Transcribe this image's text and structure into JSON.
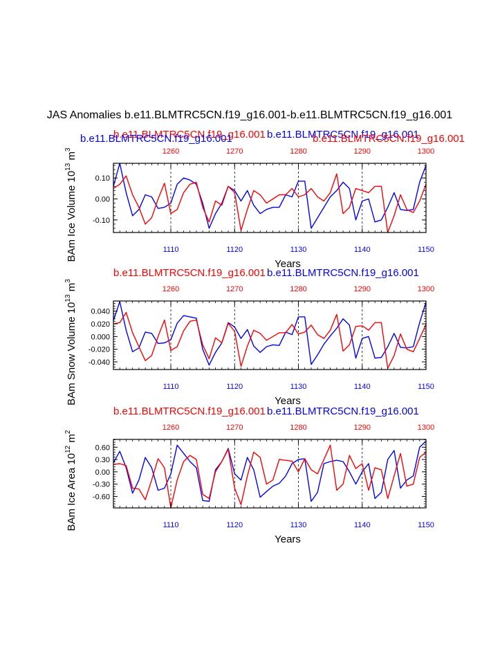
{
  "page": {
    "title": "JAS Anomalies b.e11.BLMTRC5CN.f19_g16.001-b.e11.BLMTRC5CN.f19_g16.001"
  },
  "colors": {
    "blue": "#0000ff",
    "red": "#ff0000",
    "axis": "#000000"
  },
  "chart_data": [
    {
      "type": "line",
      "ylabel": "BAm Ice Volume 10",
      "ylabel_exp": "13",
      "ylabel_unit": " m",
      "ylabel_unit_exp": "3",
      "xlabel": "Years",
      "top_labels": [
        {
          "text": "b.e11.BLMTRC5CN.f19_g16.001",
          "color": "red"
        },
        {
          "text": "b.e11.BLMTRC5CN.f19_g16.001",
          "color": "blue"
        },
        {
          "text": "b.e11.BLMTRC5CN.f19_g16.001",
          "color": "blue"
        },
        {
          "text": "b.e11.BLMTRC5CN.f19_g16.001",
          "color": "red"
        }
      ],
      "xlim": [
        1101,
        1150
      ],
      "ylim": [
        -0.16,
        0.17
      ],
      "yticks": [
        -0.1,
        0.0,
        0.1
      ],
      "ytick_labels": [
        "-0.10",
        "0.00",
        "0.10"
      ],
      "xticks": [
        1110,
        1120,
        1130,
        1140,
        1150
      ],
      "xtick_labels": [
        "1110",
        "1120",
        "1130",
        "1140",
        "1150"
      ],
      "top_ticks": [
        1110,
        1120,
        1130,
        1140,
        1150
      ],
      "top_tick_labels": [
        "1260",
        "1270",
        "1280",
        "1290",
        "1300"
      ],
      "x": [
        1101,
        1102,
        1103,
        1104,
        1105,
        1106,
        1107,
        1108,
        1109,
        1110,
        1111,
        1112,
        1113,
        1114,
        1115,
        1116,
        1117,
        1118,
        1119,
        1120,
        1121,
        1122,
        1123,
        1124,
        1125,
        1126,
        1127,
        1128,
        1129,
        1130,
        1131,
        1132,
        1133,
        1134,
        1135,
        1136,
        1137,
        1138,
        1139,
        1140,
        1141,
        1142,
        1143,
        1144,
        1145,
        1146,
        1147,
        1148,
        1149,
        1150
      ],
      "series": [
        {
          "name": "blue",
          "color": "blue",
          "values": [
            0.06,
            0.17,
            0.03,
            -0.08,
            -0.05,
            0.02,
            0.01,
            -0.045,
            -0.04,
            -0.02,
            0.07,
            0.1,
            0.09,
            0.07,
            -0.02,
            -0.14,
            -0.07,
            -0.02,
            0.06,
            0.04,
            -0.01,
            0.04,
            -0.03,
            -0.07,
            -0.05,
            -0.04,
            -0.04,
            0.02,
            0.01,
            0.085,
            0.085,
            -0.14,
            -0.09,
            -0.04,
            0.01,
            0.04,
            0.08,
            0.05,
            -0.1,
            -0.01,
            0.0,
            -0.11,
            -0.1,
            -0.04,
            0.03,
            -0.05,
            -0.055,
            -0.05,
            0.08,
            0.16
          ]
        },
        {
          "name": "red",
          "color": "red",
          "values": [
            0.05,
            0.07,
            0.11,
            0.02,
            -0.04,
            -0.12,
            -0.09,
            0.0,
            0.075,
            -0.07,
            -0.05,
            0.03,
            0.07,
            0.08,
            -0.04,
            -0.11,
            -0.01,
            -0.03,
            0.06,
            0.03,
            -0.15,
            -0.05,
            0.04,
            0.02,
            -0.02,
            0.0,
            0.02,
            0.02,
            0.05,
            0.01,
            0.02,
            0.05,
            0.01,
            -0.01,
            0.03,
            0.12,
            -0.07,
            -0.04,
            0.05,
            0.04,
            0.03,
            0.06,
            0.06,
            -0.16,
            -0.08,
            0.02,
            -0.05,
            -0.065,
            -0.01,
            0.07
          ]
        }
      ]
    },
    {
      "type": "line",
      "ylabel": "BAm Snow Volume 10",
      "ylabel_exp": "13",
      "ylabel_unit": " m",
      "ylabel_unit_exp": "3",
      "xlabel": "Years",
      "top_labels": [
        {
          "text": "b.e11.BLMTRC5CN.f19_g16.001",
          "color": "red"
        },
        {
          "text": "b.e11.BLMTRC5CN.f19_g16.001",
          "color": "blue"
        }
      ],
      "xlim": [
        1101,
        1150
      ],
      "ylim": [
        -0.052,
        0.056
      ],
      "yticks": [
        -0.04,
        -0.02,
        0.0,
        0.02,
        0.04
      ],
      "ytick_labels": [
        "-0.040",
        "-0.020",
        "0.000",
        "0.020",
        "0.040"
      ],
      "xticks": [
        1110,
        1120,
        1130,
        1140,
        1150
      ],
      "xtick_labels": [
        "1110",
        "1120",
        "1130",
        "1140",
        "1150"
      ],
      "top_ticks": [
        1110,
        1120,
        1130,
        1140,
        1150
      ],
      "top_tick_labels": [
        "1260",
        "1270",
        "1280",
        "1290",
        "1300"
      ],
      "x": [
        1101,
        1102,
        1103,
        1104,
        1105,
        1106,
        1107,
        1108,
        1109,
        1110,
        1111,
        1112,
        1113,
        1114,
        1115,
        1116,
        1117,
        1118,
        1119,
        1120,
        1121,
        1122,
        1123,
        1124,
        1125,
        1126,
        1127,
        1128,
        1129,
        1130,
        1131,
        1132,
        1133,
        1134,
        1135,
        1136,
        1137,
        1138,
        1139,
        1140,
        1141,
        1142,
        1143,
        1144,
        1145,
        1146,
        1147,
        1148,
        1149,
        1150
      ],
      "series": [
        {
          "name": "blue",
          "color": "blue",
          "values": [
            0.025,
            0.055,
            0.01,
            -0.024,
            -0.018,
            0.007,
            0.005,
            -0.011,
            -0.01,
            -0.005,
            0.021,
            0.033,
            0.031,
            0.029,
            -0.02,
            -0.045,
            -0.025,
            -0.01,
            0.022,
            0.015,
            -0.003,
            0.011,
            -0.015,
            -0.025,
            -0.016,
            -0.013,
            -0.014,
            0.007,
            0.003,
            0.031,
            0.031,
            -0.044,
            -0.029,
            -0.012,
            0.001,
            0.013,
            0.028,
            0.018,
            -0.034,
            -0.003,
            0.0,
            -0.034,
            -0.033,
            -0.016,
            0.005,
            -0.017,
            -0.018,
            -0.016,
            0.022,
            0.054
          ]
        },
        {
          "name": "red",
          "color": "red",
          "values": [
            0.02,
            0.022,
            0.038,
            0.006,
            -0.016,
            -0.038,
            -0.03,
            0.0,
            0.026,
            -0.022,
            -0.016,
            0.009,
            0.024,
            0.026,
            -0.013,
            -0.035,
            -0.002,
            -0.01,
            0.021,
            0.008,
            -0.047,
            -0.015,
            0.01,
            0.005,
            -0.006,
            0.0,
            0.006,
            0.006,
            0.019,
            0.004,
            0.007,
            0.018,
            0.003,
            -0.003,
            0.01,
            0.035,
            -0.023,
            -0.013,
            0.016,
            0.017,
            0.01,
            0.022,
            0.022,
            -0.05,
            -0.03,
            0.004,
            -0.02,
            -0.024,
            -0.003,
            0.019
          ]
        }
      ]
    },
    {
      "type": "line",
      "ylabel": "BAm Ice Area 10",
      "ylabel_exp": "12",
      "ylabel_unit": " m",
      "ylabel_unit_exp": "2",
      "xlabel": "Years",
      "top_labels": [
        {
          "text": "b.e11.BLMTRC5CN.f19_g16.001",
          "color": "red"
        },
        {
          "text": "b.e11.BLMTRC5CN.f19_g16.001",
          "color": "blue"
        }
      ],
      "xlim": [
        1101,
        1150
      ],
      "ylim": [
        -0.88,
        0.79
      ],
      "yticks": [
        -0.6,
        -0.3,
        0.0,
        0.3,
        0.6
      ],
      "ytick_labels": [
        "-0.60",
        "-0.30",
        "0.00",
        "0.30",
        "0.60"
      ],
      "xticks": [
        1110,
        1120,
        1130,
        1140,
        1150
      ],
      "xtick_labels": [
        "1110",
        "1120",
        "1130",
        "1140",
        "1150"
      ],
      "top_ticks": [
        1110,
        1120,
        1130,
        1140,
        1150
      ],
      "top_tick_labels": [
        "1260",
        "1270",
        "1280",
        "1290",
        "1300"
      ],
      "x": [
        1101,
        1102,
        1103,
        1104,
        1105,
        1106,
        1107,
        1108,
        1109,
        1110,
        1111,
        1112,
        1113,
        1114,
        1115,
        1116,
        1117,
        1118,
        1119,
        1120,
        1121,
        1122,
        1123,
        1124,
        1125,
        1126,
        1127,
        1128,
        1129,
        1130,
        1131,
        1132,
        1133,
        1134,
        1135,
        1136,
        1137,
        1138,
        1139,
        1140,
        1141,
        1142,
        1143,
        1144,
        1145,
        1146,
        1147,
        1148,
        1149,
        1150
      ],
      "series": [
        {
          "name": "blue",
          "color": "blue",
          "values": [
            0.22,
            0.5,
            0.1,
            -0.52,
            -0.2,
            0.35,
            0.1,
            -0.45,
            -0.4,
            -0.05,
            0.65,
            0.45,
            0.25,
            0.1,
            -0.7,
            -0.72,
            0.05,
            0.25,
            0.57,
            -0.05,
            -0.2,
            0.35,
            0.05,
            -0.62,
            -0.48,
            -0.35,
            -0.28,
            -0.1,
            0.2,
            0.3,
            0.32,
            -0.72,
            -0.5,
            0.2,
            0.25,
            0.28,
            0.25,
            0.0,
            -0.3,
            0.0,
            0.2,
            -0.65,
            -0.5,
            0.3,
            0.52,
            -0.4,
            -0.2,
            -0.1,
            0.6,
            0.75
          ]
        },
        {
          "name": "red",
          "color": "red",
          "values": [
            0.18,
            0.2,
            0.15,
            -0.4,
            -0.42,
            -0.68,
            -0.2,
            0.32,
            0.1,
            -0.88,
            -0.2,
            0.25,
            0.4,
            0.3,
            -0.55,
            -0.65,
            0.0,
            0.25,
            0.55,
            -0.4,
            -0.8,
            -0.1,
            0.48,
            0.35,
            -0.3,
            -0.2,
            0.3,
            0.28,
            0.26,
            0.0,
            0.32,
            0.05,
            -0.05,
            0.3,
            0.65,
            -0.45,
            -0.3,
            0.4,
            0.08,
            0.2,
            -0.45,
            0.1,
            0.05,
            -0.65,
            -0.1,
            0.45,
            -0.35,
            -0.3,
            0.35,
            0.48
          ]
        }
      ]
    }
  ]
}
